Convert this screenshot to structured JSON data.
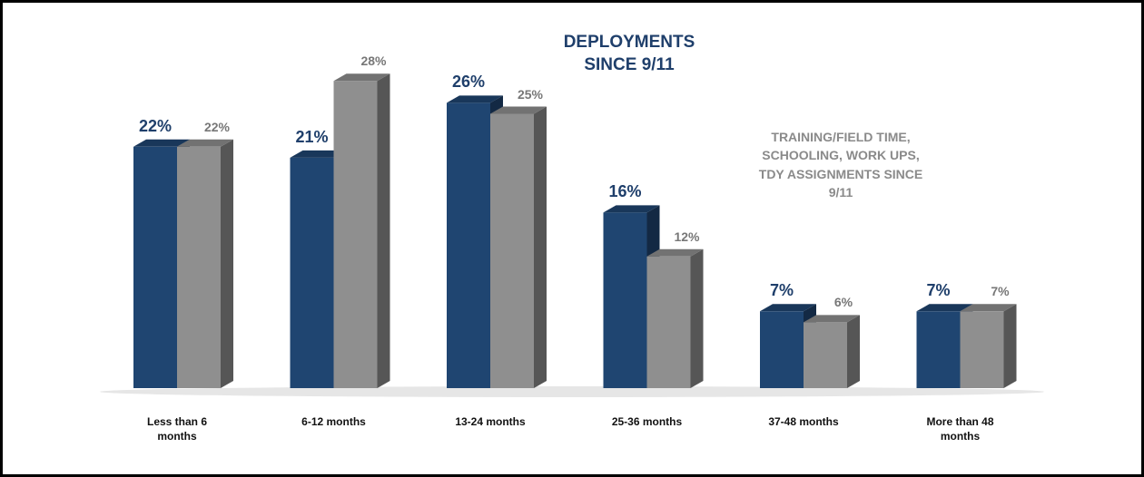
{
  "chart_data": {
    "type": "bar3d",
    "categories": [
      "Less than 6 months",
      "6-12 months",
      "13-24 months",
      "25-36 months",
      "37-48 months",
      "More than 48 months"
    ],
    "series": [
      {
        "name": "DEPLOYMENTS SINCE 9/11",
        "color": "#1f4571",
        "values": [
          22,
          21,
          26,
          16,
          7,
          7
        ],
        "value_labels": [
          "22%",
          "21%",
          "26%",
          "16%",
          "7%",
          "7%"
        ]
      },
      {
        "name": "TRAINING/FIELD TIME, SCHOOLING, WORK UPS, TDY ASSIGNMENTS SINCE 9/11",
        "color": "#8f8f8f",
        "values": [
          22,
          28,
          25,
          12,
          6,
          7
        ],
        "value_labels": [
          "22%",
          "28%",
          "25%",
          "12%",
          "6%",
          "7%"
        ]
      }
    ]
  }
}
